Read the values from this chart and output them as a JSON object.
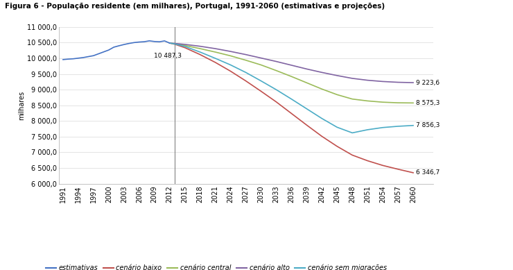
{
  "title": "Figura 6 - População residente (em milhares), Portugal, 1991-2060 (estimativas e projeções)",
  "ylabel": "milhares",
  "ylim": [
    6000,
    11000
  ],
  "yticks": [
    6000,
    6500,
    7000,
    7500,
    8000,
    8500,
    9000,
    9500,
    10000,
    10500,
    11000
  ],
  "divider_year": 2013,
  "annotation_year": 2012,
  "annotation_value": 10487.3,
  "annotation_text": "10 487,3",
  "end_annotations": [
    {
      "label": "9 223,6",
      "value": 9223.6
    },
    {
      "label": "8 575,3",
      "value": 8575.3
    },
    {
      "label": "7 856,3",
      "value": 7856.3
    },
    {
      "label": "6 346,7",
      "value": 6346.7
    }
  ],
  "hist_years": [
    1991,
    1992,
    1993,
    1994,
    1995,
    1996,
    1997,
    1998,
    1999,
    2000,
    2001,
    2002,
    2003,
    2004,
    2005,
    2006,
    2007,
    2008,
    2009,
    2010,
    2011,
    2012
  ],
  "hist_values": [
    9960,
    9975,
    9985,
    10005,
    10025,
    10055,
    10085,
    10145,
    10205,
    10265,
    10356,
    10400,
    10440,
    10475,
    10503,
    10520,
    10530,
    10558,
    10537,
    10528,
    10556,
    10487.3
  ],
  "proj_years": [
    2012,
    2013,
    2015,
    2018,
    2021,
    2024,
    2027,
    2030,
    2033,
    2036,
    2039,
    2042,
    2045,
    2048,
    2051,
    2054,
    2057,
    2060
  ],
  "proj_baixo": [
    10487.3,
    10450,
    10340,
    10120,
    9870,
    9590,
    9280,
    8950,
    8610,
    8240,
    7870,
    7510,
    7190,
    6910,
    6730,
    6580,
    6460,
    6346.7
  ],
  "proj_central": [
    10487.3,
    10470,
    10410,
    10310,
    10200,
    10080,
    9940,
    9790,
    9610,
    9420,
    9220,
    9020,
    8840,
    8700,
    8640,
    8600,
    8580,
    8575.3
  ],
  "proj_alto": [
    10487.3,
    10475,
    10445,
    10385,
    10310,
    10220,
    10120,
    10010,
    9900,
    9780,
    9660,
    9550,
    9450,
    9360,
    9300,
    9260,
    9235,
    9223.6
  ],
  "proj_sem_mig": [
    10487.3,
    10460,
    10380,
    10200,
    10000,
    9790,
    9550,
    9280,
    9000,
    8700,
    8390,
    8080,
    7800,
    7620,
    7720,
    7790,
    7830,
    7856.3
  ],
  "color_hist": "#4472C4",
  "color_baixo": "#C0504D",
  "color_central": "#9BBB59",
  "color_alto": "#8064A2",
  "color_sem_mig": "#4BACC6",
  "legend_labels": [
    "estimativas",
    "cenário baixo",
    "cenário central",
    "cenário alto",
    "cenário sem migrações"
  ],
  "bg_color": "#FFFFFF",
  "plot_bg": "#FFFFFF",
  "grid_color": "#D9D9D9"
}
